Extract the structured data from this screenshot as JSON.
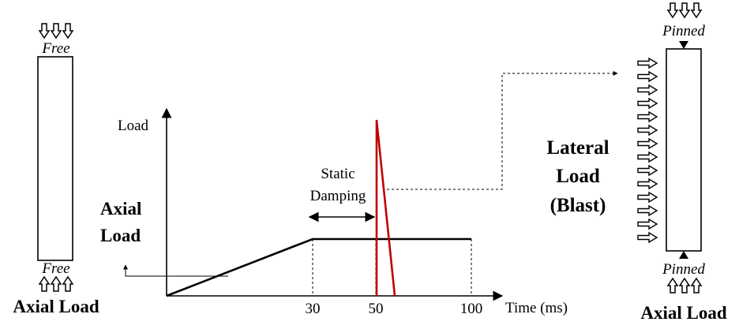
{
  "left_column": {
    "top_support": "Free",
    "bottom_support": "Free",
    "load_label": "Axial Load"
  },
  "right_column": {
    "top_support": "Pinned",
    "bottom_support": "Pinned",
    "load_label": "Axial Load",
    "lateral_label_line1": "Lateral",
    "lateral_label_line2": "Load",
    "lateral_label_line3": "(Blast)"
  },
  "load_history": {
    "y_label": "Load",
    "x_label": "Time (ms)",
    "ticks": [
      "30",
      "50",
      "100"
    ],
    "axial_label_line1": "Axial",
    "axial_label_line2": "Load",
    "static_damping_line1": "Static",
    "static_damping_line2": "Damping",
    "axial_curve": {
      "ramp_end_ms": 30,
      "plateau_end_ms": 100
    },
    "blast_pulse": {
      "start_ms": 50,
      "end_ms": 57
    }
  },
  "colors": {
    "line": "#000000",
    "blast": "#c00000"
  }
}
